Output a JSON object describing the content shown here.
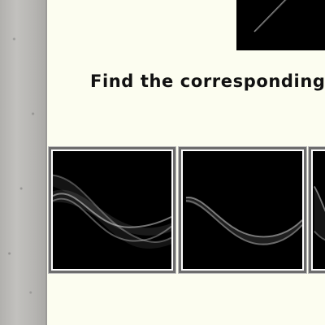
{
  "instruction": "Find the corresponding",
  "colors": {
    "background": "#fcfdf0",
    "tile_frame": "#6d6d6d",
    "tile_border": "#ffffff",
    "tile_fill": "#000000",
    "text": "#111111"
  },
  "options_count_visible": 3
}
